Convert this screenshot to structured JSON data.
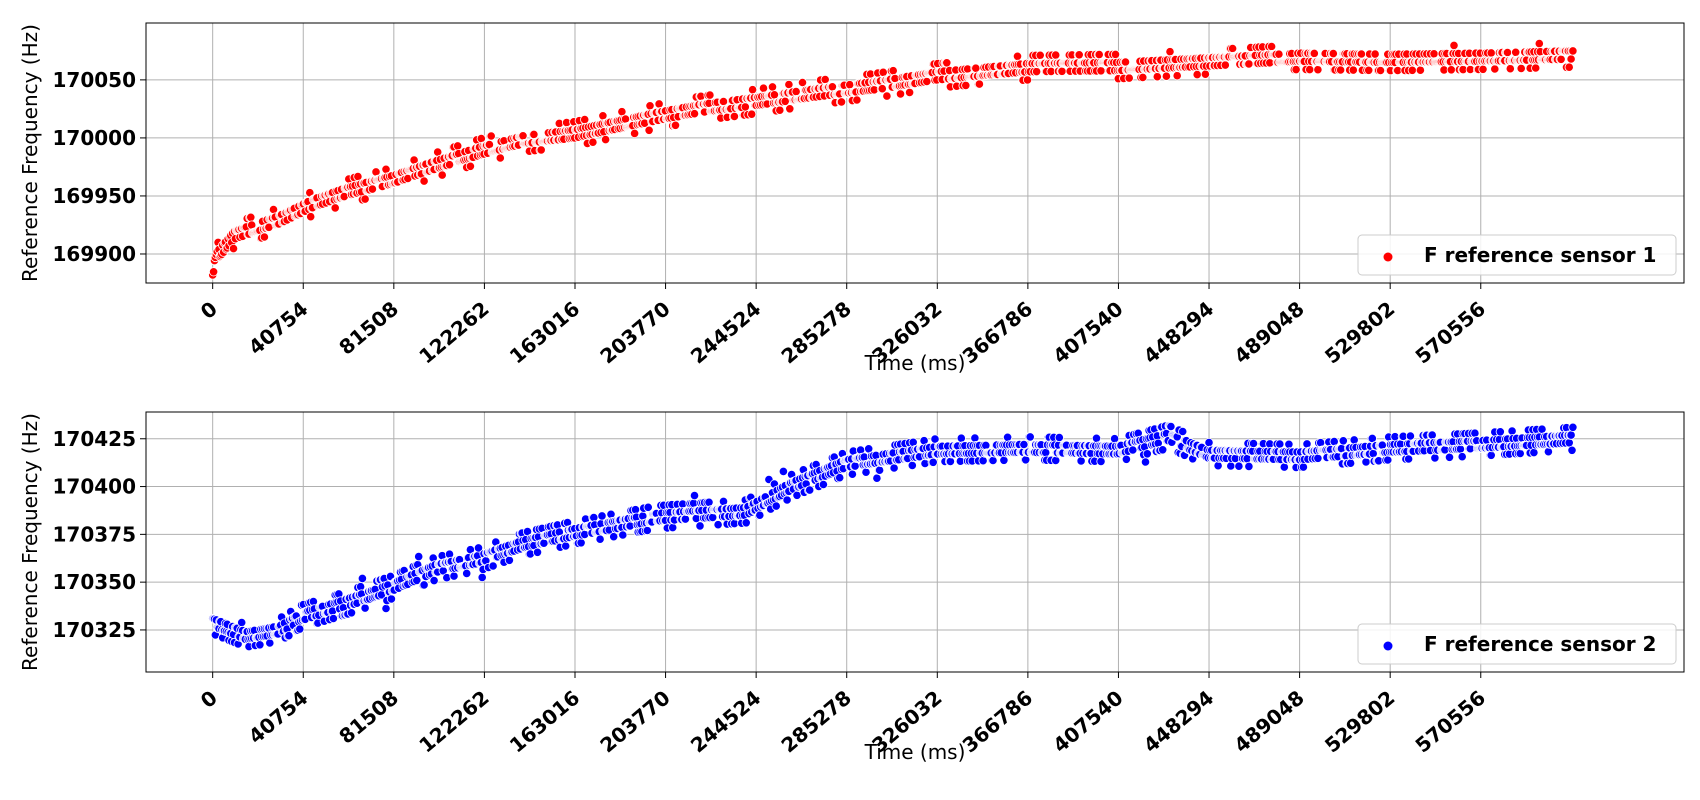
{
  "chart_data": [
    {
      "type": "scatter",
      "xlabel": "Time (ms)",
      "ylabel": "Reference Frequency (Hz)",
      "xlim": [
        -30000,
        662000
      ],
      "ylim": [
        169875,
        170099
      ],
      "xticks": [
        0,
        40754,
        81508,
        122262,
        163016,
        203770,
        244524,
        285278,
        326032,
        366786,
        407540,
        448294,
        489048,
        529802,
        570556
      ],
      "yticks": [
        169900,
        169950,
        170000,
        170050
      ],
      "grid": true,
      "legend_position": "lower-right",
      "colors": {
        "series": "#ff0000",
        "edge": "#ffffff",
        "grid": "#b0b0b0"
      },
      "series": [
        {
          "name": "F reference sensor 1",
          "trend": [
            [
              0,
              169882
            ],
            [
              2000,
              169895
            ],
            [
              10000,
              169913
            ],
            [
              30000,
              169926
            ],
            [
              45000,
              169940
            ],
            [
              60000,
              169950
            ],
            [
              80000,
              169960
            ],
            [
              100000,
              169973
            ],
            [
              120000,
              169985
            ],
            [
              140000,
              169995
            ],
            [
              163000,
              170000
            ],
            [
              200000,
              170015
            ],
            [
              220000,
              170022
            ],
            [
              245000,
              170028
            ],
            [
              270000,
              170035
            ],
            [
              300000,
              170042
            ],
            [
              326000,
              170050
            ],
            [
              366000,
              170057
            ],
            [
              407000,
              170058
            ],
            [
              448000,
              170062
            ],
            [
              489000,
              170066
            ],
            [
              530000,
              170065
            ],
            [
              570000,
              170066
            ],
            [
              612000,
              170068
            ]
          ],
          "x_range": [
            0,
            612000
          ],
          "approx_points": 1500,
          "spread_hz": 12,
          "value_step_hz": 7
        }
      ]
    },
    {
      "type": "scatter",
      "xlabel": "Time (ms)",
      "ylabel": "Reference Frequency (Hz)",
      "xlim": [
        -30000,
        662000
      ],
      "ylim": [
        170303,
        170439
      ],
      "xticks": [
        0,
        40754,
        81508,
        122262,
        163016,
        203770,
        244524,
        285278,
        326032,
        366786,
        407540,
        448294,
        489048,
        529802,
        570556
      ],
      "yticks": [
        170325,
        170350,
        170375,
        170400,
        170425
      ],
      "grid": true,
      "legend_position": "lower-right",
      "colors": {
        "series": "#0000ff",
        "edge": "#ffffff",
        "grid": "#b0b0b0"
      },
      "series": [
        {
          "name": "F reference sensor 2",
          "trend": [
            [
              0,
              170327
            ],
            [
              15000,
              170320
            ],
            [
              30000,
              170323
            ],
            [
              40000,
              170330
            ],
            [
              60000,
              170337
            ],
            [
              80000,
              170345
            ],
            [
              100000,
              170355
            ],
            [
              120000,
              170360
            ],
            [
              140000,
              170368
            ],
            [
              163000,
              170374
            ],
            [
              200000,
              170382
            ],
            [
              240000,
              170385
            ],
            [
              260000,
              170398
            ],
            [
              285000,
              170410
            ],
            [
              326000,
              170417
            ],
            [
              366000,
              170418
            ],
            [
              407000,
              170417
            ],
            [
              430000,
              170424
            ],
            [
              448000,
              170415
            ],
            [
              489000,
              170414
            ],
            [
              530000,
              170418
            ],
            [
              570000,
              170420
            ],
            [
              612000,
              170423
            ]
          ],
          "x_range": [
            0,
            612000
          ],
          "approx_points": 1500,
          "spread_hz": 9,
          "value_step_hz": 4
        }
      ]
    }
  ]
}
